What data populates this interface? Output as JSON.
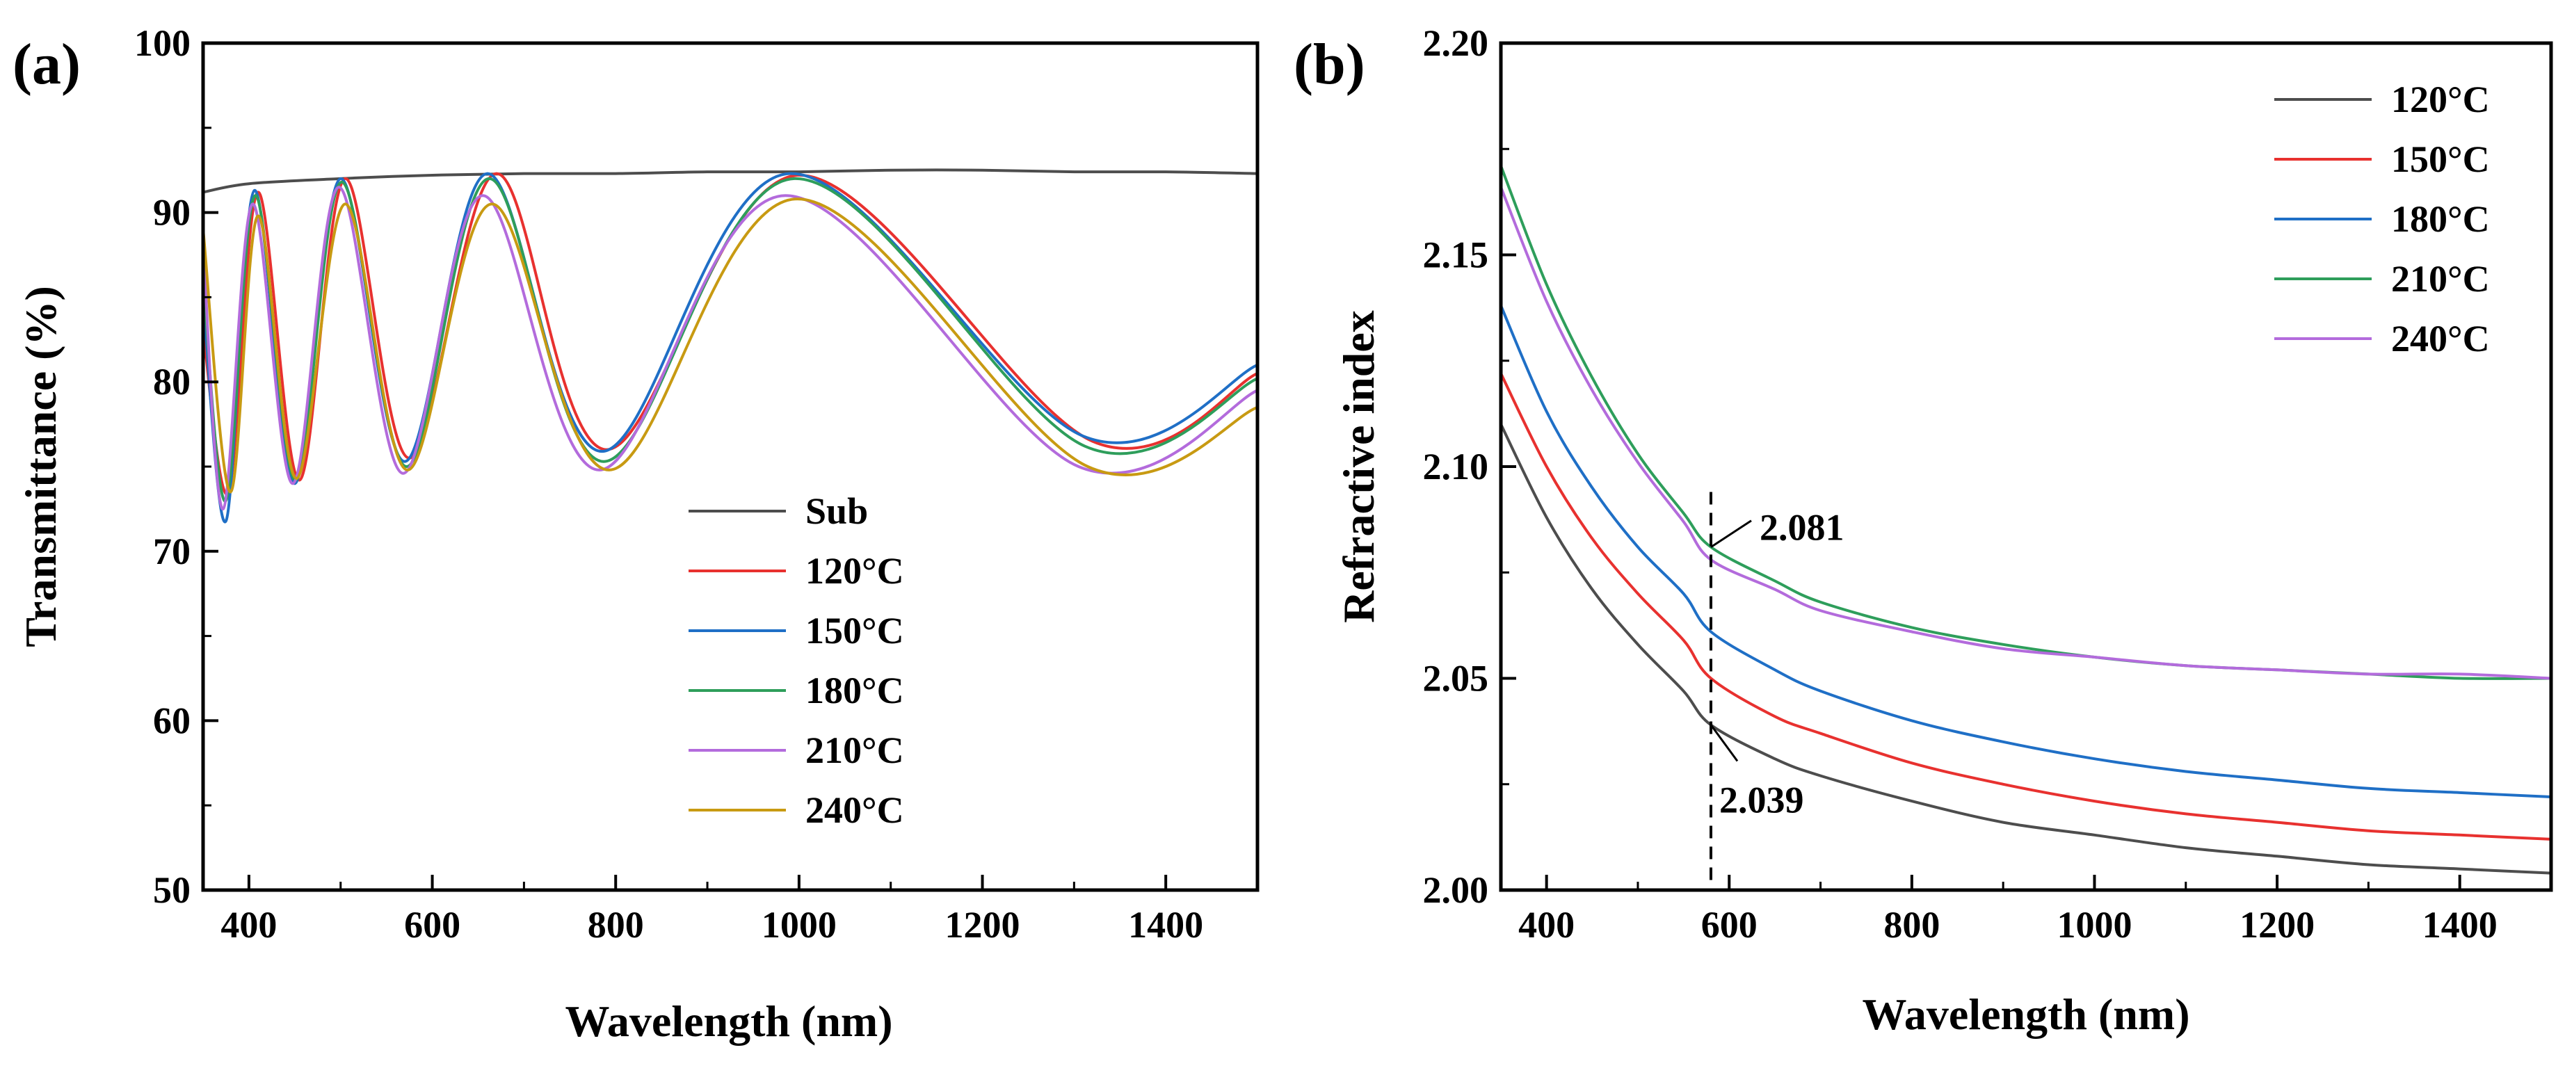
{
  "chart_data": [
    {
      "id": "a",
      "type": "line",
      "panel_label": "(a)",
      "xlabel": "Wavelength (nm)",
      "ylabel": "Transmittance (%)",
      "xlim": [
        350,
        1500
      ],
      "ylim": [
        50,
        100
      ],
      "xticks": [
        400,
        600,
        800,
        1000,
        1200,
        1400
      ],
      "yticks": [
        50,
        60,
        70,
        80,
        90,
        100
      ],
      "legend_position": "center-right",
      "series": [
        {
          "name": "Sub",
          "color": "#4d4d4d",
          "x": [
            350,
            400,
            500,
            600,
            700,
            800,
            900,
            1000,
            1100,
            1200,
            1300,
            1400,
            1500
          ],
          "y": [
            91.2,
            91.7,
            92.0,
            92.2,
            92.3,
            92.3,
            92.4,
            92.4,
            92.5,
            92.5,
            92.4,
            92.4,
            92.3
          ]
        },
        {
          "name": "120°C",
          "color": "#e8312f",
          "x": [
            350,
            378,
            410,
            455,
            505,
            575,
            670,
            790,
            1000,
            1320,
            1500
          ],
          "y": [
            83,
            73.5,
            91.2,
            74.2,
            92.0,
            75.5,
            92.3,
            76.0,
            92.2,
            76.5,
            80.5
          ]
        },
        {
          "name": "150°C",
          "color": "#1f6fc6",
          "x": [
            350,
            375,
            406,
            450,
            500,
            570,
            660,
            785,
            990,
            1310,
            1500
          ],
          "y": [
            85,
            71.8,
            91.3,
            74.0,
            92.0,
            75.3,
            92.3,
            75.9,
            92.3,
            76.8,
            81.0
          ]
        },
        {
          "name": "180°C",
          "color": "#2e9e5b",
          "x": [
            350,
            375,
            407,
            451,
            501,
            572,
            662,
            787,
            995,
            1312,
            1500
          ],
          "y": [
            86,
            73.0,
            91.0,
            74.2,
            91.8,
            75.0,
            92.0,
            75.3,
            92.0,
            76.2,
            80.2
          ]
        },
        {
          "name": "210°C",
          "color": "#b36bdc",
          "x": [
            350,
            372,
            404,
            448,
            498,
            568,
            655,
            782,
            985,
            1305,
            1500
          ],
          "y": [
            88,
            72.5,
            90.5,
            74.0,
            91.5,
            74.6,
            91.0,
            74.8,
            91.0,
            75.0,
            79.5
          ]
        },
        {
          "name": "240°C",
          "color": "#c89a12",
          "x": [
            350,
            380,
            410,
            452,
            505,
            573,
            665,
            793,
            998,
            1315,
            1500
          ],
          "y": [
            89,
            73.5,
            89.8,
            74.3,
            90.5,
            74.8,
            90.5,
            74.8,
            90.8,
            75.0,
            78.5
          ]
        }
      ]
    },
    {
      "id": "b",
      "type": "line",
      "panel_label": "(b)",
      "xlabel": "Wavelength (nm)",
      "ylabel": "Refractive index",
      "xlim": [
        350,
        1500
      ],
      "ylim": [
        2.0,
        2.2
      ],
      "xticks": [
        400,
        600,
        800,
        1000,
        1200,
        1400
      ],
      "yticks": [
        2.0,
        2.05,
        2.1,
        2.15,
        2.2
      ],
      "ytick_labels": [
        "2.00",
        "2.05",
        "2.10",
        "2.15",
        "2.20"
      ],
      "legend_position": "top-right",
      "series": [
        {
          "name": "120°C",
          "color": "#4d4d4d",
          "x": [
            350,
            400,
            450,
            500,
            550,
            580,
            650,
            700,
            800,
            900,
            1000,
            1100,
            1200,
            1300,
            1400,
            1500
          ],
          "y": [
            2.11,
            2.088,
            2.071,
            2.058,
            2.047,
            2.039,
            2.031,
            2.027,
            2.021,
            2.016,
            2.013,
            2.01,
            2.008,
            2.006,
            2.005,
            2.004
          ]
        },
        {
          "name": "150°C",
          "color": "#e8312f",
          "x": [
            350,
            400,
            450,
            500,
            550,
            580,
            650,
            700,
            800,
            900,
            1000,
            1100,
            1200,
            1300,
            1400,
            1500
          ],
          "y": [
            2.122,
            2.1,
            2.083,
            2.07,
            2.059,
            2.05,
            2.041,
            2.037,
            2.03,
            2.025,
            2.021,
            2.018,
            2.016,
            2.014,
            2.013,
            2.012
          ]
        },
        {
          "name": "180°C",
          "color": "#1f6fc6",
          "x": [
            350,
            400,
            450,
            500,
            550,
            580,
            650,
            700,
            800,
            900,
            1000,
            1100,
            1200,
            1300,
            1400,
            1500
          ],
          "y": [
            2.138,
            2.113,
            2.095,
            2.081,
            2.07,
            2.061,
            2.052,
            2.047,
            2.04,
            2.035,
            2.031,
            2.028,
            2.026,
            2.024,
            2.023,
            2.022
          ]
        },
        {
          "name": "210°C",
          "color": "#2e9e5b",
          "x": [
            350,
            400,
            450,
            500,
            550,
            580,
            650,
            700,
            800,
            900,
            1000,
            1100,
            1200,
            1300,
            1400,
            1500
          ],
          "y": [
            2.171,
            2.143,
            2.121,
            2.103,
            2.089,
            2.081,
            2.073,
            2.068,
            2.062,
            2.058,
            2.055,
            2.053,
            2.052,
            2.051,
            2.05,
            2.05
          ]
        },
        {
          "name": "240°C",
          "color": "#b36bdc",
          "x": [
            350,
            400,
            450,
            500,
            550,
            580,
            650,
            700,
            800,
            900,
            1000,
            1100,
            1200,
            1300,
            1400,
            1500
          ],
          "y": [
            2.166,
            2.139,
            2.118,
            2.101,
            2.087,
            2.078,
            2.071,
            2.066,
            2.061,
            2.057,
            2.055,
            2.053,
            2.052,
            2.051,
            2.051,
            2.05
          ]
        }
      ],
      "annotations": [
        {
          "text": "2.081",
          "x": 580,
          "y": 2.081
        },
        {
          "text": "2.039",
          "x": 580,
          "y": 2.039
        }
      ],
      "reference_line_x": 580
    }
  ]
}
